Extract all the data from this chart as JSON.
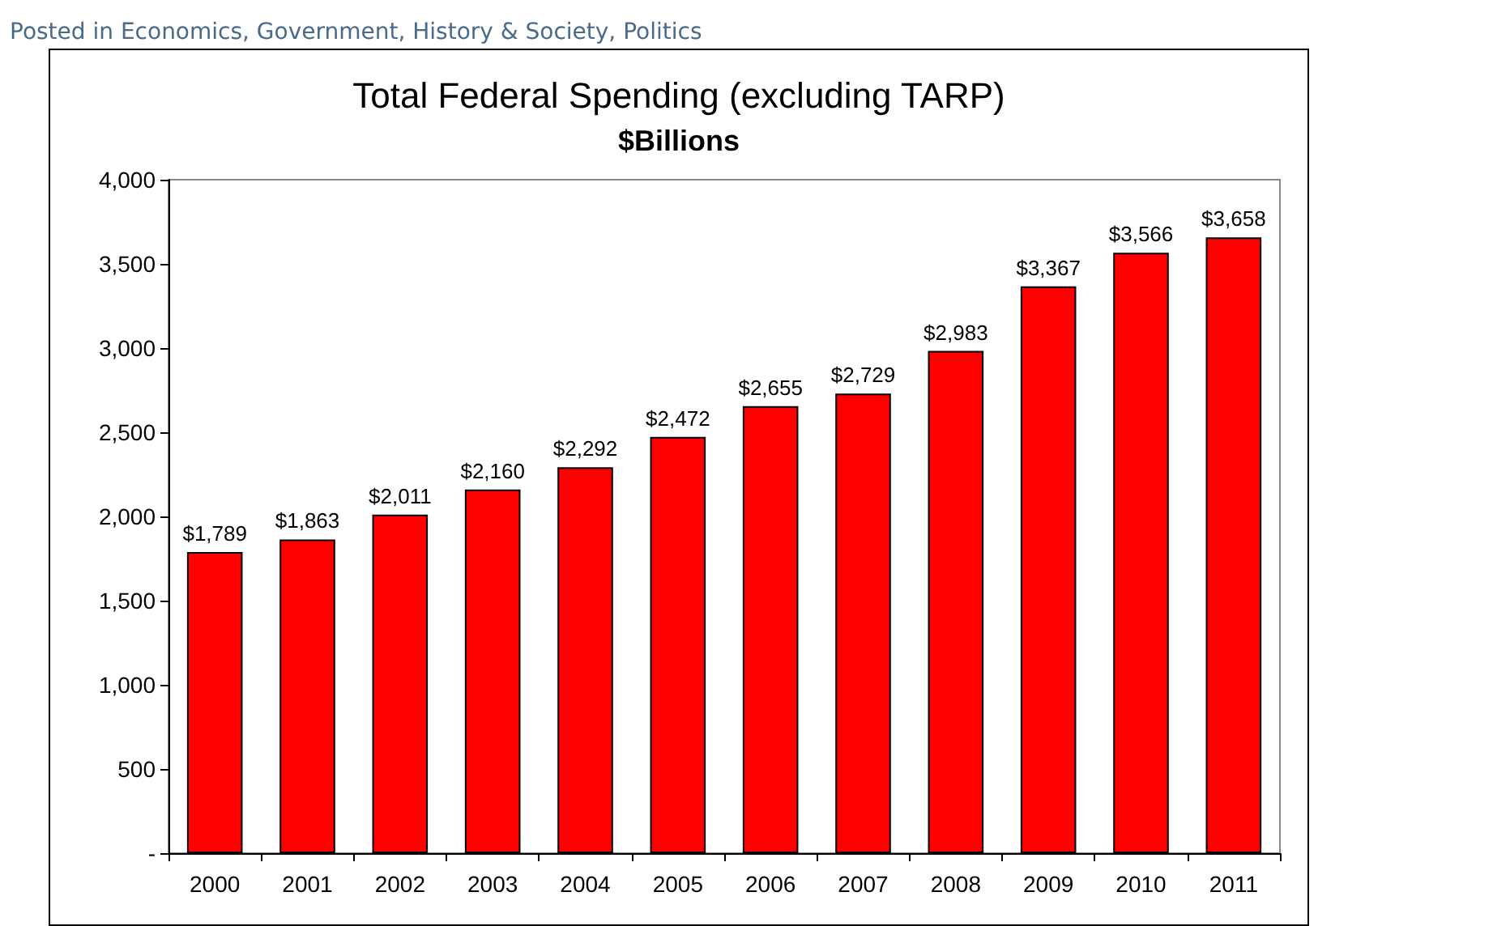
{
  "chart_data": {
    "type": "bar",
    "title": "Total Federal Spending (excluding TARP)",
    "subtitle": "$Billions",
    "annotations": [
      "Posted in Economics, Government, History & Society, Politics"
    ],
    "categories": [
      "2000",
      "2001",
      "2002",
      "2003",
      "2004",
      "2005",
      "2006",
      "2007",
      "2008",
      "2009",
      "2010",
      "2011"
    ],
    "values": [
      1789,
      1863,
      2011,
      2160,
      2292,
      2472,
      2655,
      2729,
      2983,
      3367,
      3566,
      3658
    ],
    "value_labels": [
      "$1,789",
      "$1,863",
      "$2,011",
      "$2,160",
      "$2,292",
      "$2,472",
      "$2,655",
      "$2,729",
      "$2,983",
      "$3,367",
      "$3,566",
      "$3,658"
    ],
    "color": "#ff0000",
    "ylim": [
      0,
      4000
    ],
    "yticks": [
      {
        "value": 0,
        "label": "-"
      },
      500,
      {
        "value": 1000,
        "label": "1,000"
      },
      {
        "value": 1500,
        "label": "1,500"
      },
      {
        "value": 2000,
        "label": "2,000"
      },
      {
        "value": 2500,
        "label": "2,500"
      },
      {
        "value": 3000,
        "label": "3,000"
      },
      {
        "value": 3500,
        "label": "3,500"
      },
      {
        "value": 4000,
        "label": "4,000"
      }
    ],
    "grid": false
  }
}
